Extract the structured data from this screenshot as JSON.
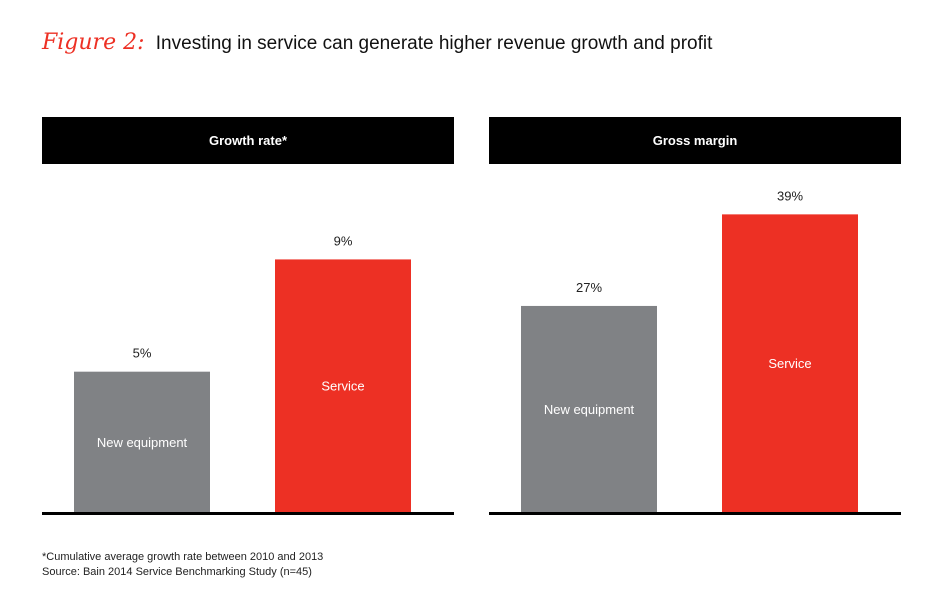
{
  "figure": {
    "label": "Figure 2:",
    "title": "Investing in service can generate higher revenue growth and profit"
  },
  "colors": {
    "gray": "#808285",
    "red": "#ed3024",
    "header": "#000000"
  },
  "chart_data": [
    {
      "type": "bar",
      "title": "Growth rate*",
      "categories": [
        "New equipment",
        "Service"
      ],
      "values": [
        5,
        9
      ],
      "value_labels": [
        "5%",
        "9%"
      ],
      "colors": [
        "#808285",
        "#ed3024"
      ],
      "ylim": [
        0,
        12.4
      ]
    },
    {
      "type": "bar",
      "title": "Gross margin",
      "categories": [
        "New equipment",
        "Service"
      ],
      "values": [
        27,
        39
      ],
      "value_labels": [
        "27%",
        "39%"
      ],
      "colors": [
        "#808285",
        "#ed3024"
      ],
      "ylim": [
        0,
        45.6
      ]
    }
  ],
  "footnotes": {
    "note": "*Cumulative average growth rate between 2010 and 2013",
    "source": "Source: Bain 2014 Service Benchmarking Study (n=45)"
  }
}
